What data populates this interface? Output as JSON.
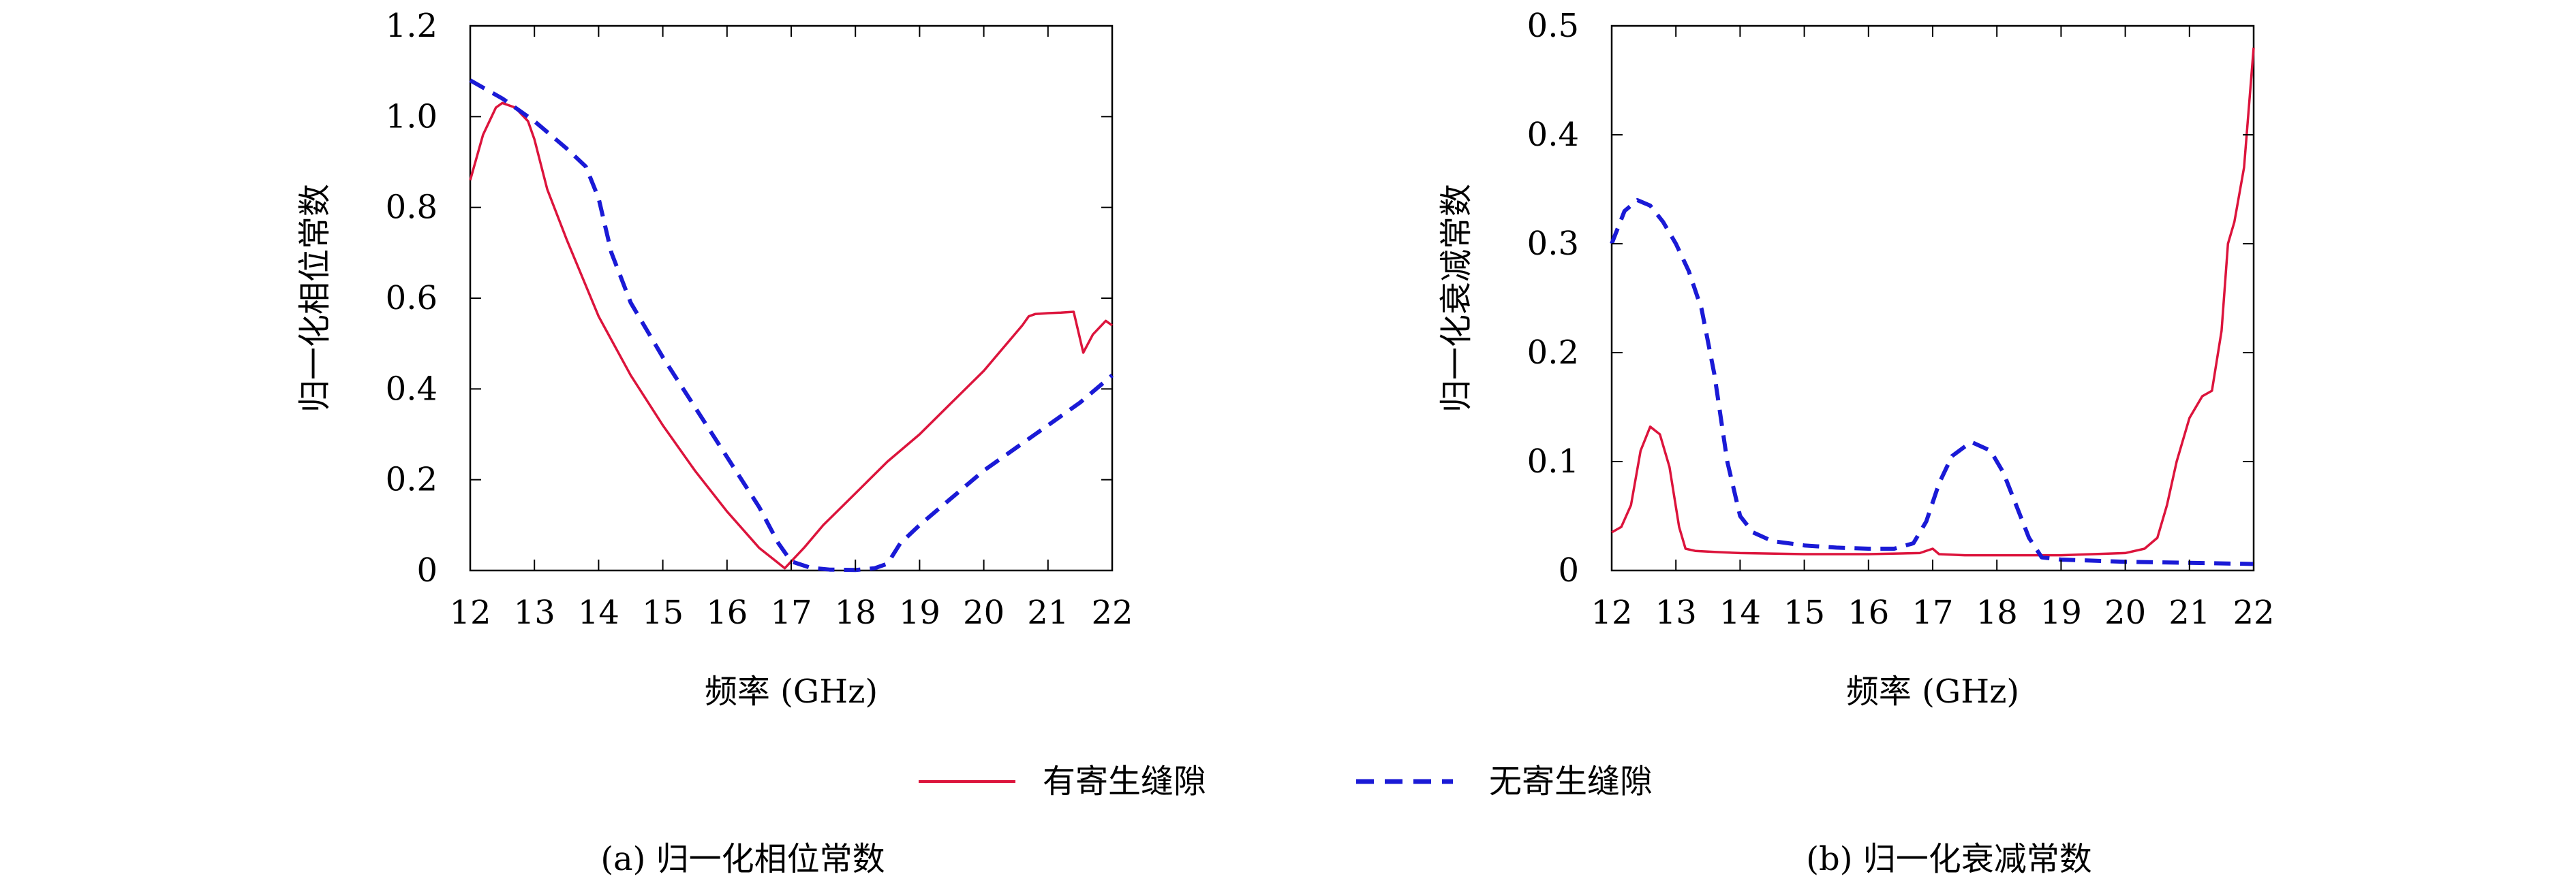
{
  "legend": {
    "items": [
      {
        "label": "有寄生缝隙",
        "color": "#dc143c",
        "dash": "solid"
      },
      {
        "label": "无寄生缝隙",
        "color": "#1a1ad6",
        "dash": "dashed"
      }
    ]
  },
  "chart_data": [
    {
      "type": "line",
      "caption": "(a) 归一化相位常数",
      "xlabel": "频率 (GHz)",
      "ylabel": "归一化相位常数",
      "xlim": [
        12,
        22
      ],
      "ylim": [
        0,
        1.2
      ],
      "xticks": [
        "12",
        "13",
        "14",
        "15",
        "16",
        "17",
        "18",
        "19",
        "20",
        "21",
        "22"
      ],
      "yticks": [
        "0",
        "0.2",
        "0.4",
        "0.6",
        "0.8",
        "1.0",
        "1.2"
      ],
      "grid": false,
      "series": [
        {
          "name": "有寄生缝隙",
          "color": "#dc143c",
          "dash": "solid",
          "x": [
            12,
            12.2,
            12.4,
            12.5,
            12.7,
            12.9,
            13.0,
            13.2,
            13.5,
            14.0,
            14.5,
            15.0,
            15.5,
            16.0,
            16.5,
            16.9,
            17.0,
            17.2,
            17.5,
            18.0,
            18.5,
            19.0,
            19.5,
            20.0,
            20.3,
            20.6,
            20.7,
            20.8,
            21.0,
            21.2,
            21.4,
            21.55,
            21.7,
            21.9,
            22.0
          ],
          "y": [
            0.86,
            0.96,
            1.02,
            1.03,
            1.02,
            0.99,
            0.95,
            0.84,
            0.73,
            0.56,
            0.43,
            0.32,
            0.22,
            0.13,
            0.05,
            0.005,
            0.02,
            0.05,
            0.1,
            0.17,
            0.24,
            0.3,
            0.37,
            0.44,
            0.49,
            0.54,
            0.56,
            0.565,
            0.567,
            0.568,
            0.57,
            0.48,
            0.52,
            0.55,
            0.54
          ]
        },
        {
          "name": "无寄生缝隙",
          "color": "#1a1ad6",
          "dash": "dashed",
          "x": [
            12,
            12.5,
            13.0,
            13.5,
            13.8,
            14.0,
            14.2,
            14.5,
            15.0,
            15.5,
            16.0,
            16.5,
            16.8,
            17.0,
            17.3,
            17.6,
            18.0,
            18.3,
            18.5,
            18.7,
            19.0,
            19.5,
            20.0,
            20.5,
            21.0,
            21.5,
            22.0
          ],
          "y": [
            1.08,
            1.04,
            0.99,
            0.93,
            0.89,
            0.82,
            0.7,
            0.59,
            0.47,
            0.36,
            0.25,
            0.14,
            0.06,
            0.02,
            0.006,
            0.002,
            0.001,
            0.005,
            0.015,
            0.06,
            0.1,
            0.16,
            0.22,
            0.27,
            0.32,
            0.37,
            0.43
          ]
        }
      ]
    },
    {
      "type": "line",
      "caption": "(b) 归一化衰减常数",
      "xlabel": "频率 (GHz)",
      "ylabel": "归一化衰减常数",
      "xlim": [
        12,
        22
      ],
      "ylim": [
        0,
        0.5
      ],
      "xticks": [
        "12",
        "13",
        "14",
        "15",
        "16",
        "17",
        "18",
        "19",
        "20",
        "21",
        "22"
      ],
      "yticks": [
        "0",
        "0.1",
        "0.2",
        "0.3",
        "0.4",
        "0.5"
      ],
      "grid": false,
      "series": [
        {
          "name": "有寄生缝隙",
          "color": "#dc143c",
          "dash": "solid",
          "x": [
            12,
            12.15,
            12.3,
            12.45,
            12.6,
            12.75,
            12.9,
            13.05,
            13.15,
            13.3,
            13.6,
            14.0,
            15.0,
            16.0,
            16.8,
            17.0,
            17.1,
            17.5,
            18.0,
            18.5,
            19.0,
            19.5,
            20.0,
            20.3,
            20.5,
            20.65,
            20.8,
            21.0,
            21.2,
            21.35,
            21.5,
            21.6,
            21.7,
            21.85,
            22.0
          ],
          "y": [
            0.035,
            0.04,
            0.06,
            0.11,
            0.132,
            0.125,
            0.095,
            0.04,
            0.02,
            0.018,
            0.017,
            0.016,
            0.015,
            0.015,
            0.016,
            0.02,
            0.015,
            0.014,
            0.014,
            0.014,
            0.014,
            0.015,
            0.016,
            0.02,
            0.03,
            0.06,
            0.1,
            0.14,
            0.16,
            0.165,
            0.22,
            0.3,
            0.32,
            0.37,
            0.48
          ]
        },
        {
          "name": "无寄生缝隙",
          "color": "#1a1ad6",
          "dash": "dashed",
          "x": [
            12,
            12.2,
            12.4,
            12.6,
            12.8,
            13.0,
            13.2,
            13.4,
            13.6,
            13.8,
            14.0,
            14.2,
            14.5,
            15.0,
            15.5,
            16.0,
            16.4,
            16.7,
            16.9,
            17.1,
            17.3,
            17.6,
            17.9,
            18.1,
            18.3,
            18.5,
            18.7,
            19.0,
            20.0,
            21.0,
            22.0
          ],
          "y": [
            0.3,
            0.33,
            0.34,
            0.335,
            0.32,
            0.3,
            0.275,
            0.24,
            0.18,
            0.1,
            0.05,
            0.035,
            0.027,
            0.023,
            0.021,
            0.02,
            0.02,
            0.025,
            0.045,
            0.08,
            0.105,
            0.118,
            0.11,
            0.09,
            0.06,
            0.03,
            0.012,
            0.01,
            0.008,
            0.007,
            0.006
          ]
        }
      ]
    }
  ]
}
